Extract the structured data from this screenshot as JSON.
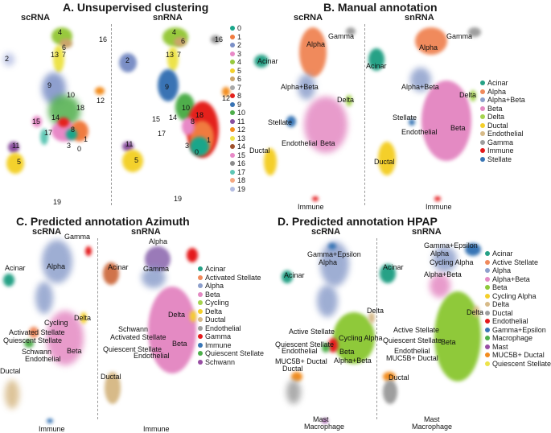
{
  "panels": {
    "A": {
      "title": "A.  Unsupervised clustering",
      "sub_left": "scRNA",
      "sub_right": "snRNA",
      "left_labels": [
        "4",
        "6",
        "16",
        "2",
        "13",
        "7",
        "9",
        "10",
        "18",
        "12",
        "15",
        "14",
        "8",
        "1",
        "17",
        "3",
        "0",
        "11",
        "5",
        "19"
      ],
      "right_labels": [
        "4",
        "6",
        "16",
        "2",
        "13",
        "7",
        "9",
        "10",
        "18",
        "12",
        "15",
        "14",
        "8",
        "1",
        "17",
        "3",
        "0",
        "11",
        "5",
        "19"
      ],
      "legend": [
        {
          "label": "0",
          "color": "#19a68a"
        },
        {
          "label": "1",
          "color": "#f07b3f"
        },
        {
          "label": "2",
          "color": "#7b8fc6"
        },
        {
          "label": "3",
          "color": "#e889c7"
        },
        {
          "label": "4",
          "color": "#97c93d"
        },
        {
          "label": "5",
          "color": "#f3d12c"
        },
        {
          "label": "6",
          "color": "#caa56b"
        },
        {
          "label": "7",
          "color": "#a8a8a8"
        },
        {
          "label": "8",
          "color": "#e4211c"
        },
        {
          "label": "9",
          "color": "#3973b4"
        },
        {
          "label": "10",
          "color": "#4fae4b"
        },
        {
          "label": "11",
          "color": "#8a4f9e"
        },
        {
          "label": "12",
          "color": "#f28c1d"
        },
        {
          "label": "13",
          "color": "#ede34a"
        },
        {
          "label": "14",
          "color": "#a0522d"
        },
        {
          "label": "15",
          "color": "#e889c7"
        },
        {
          "label": "16",
          "color": "#8c8c8c"
        },
        {
          "label": "17",
          "color": "#5fc7b5"
        },
        {
          "label": "18",
          "color": "#f5a882"
        },
        {
          "label": "19",
          "color": "#b4bde2"
        }
      ]
    },
    "B": {
      "title": "B. Manual annotation",
      "sub_left": "scRNA",
      "sub_right": "snRNA",
      "left_labels": [
        "Gamma",
        "Alpha",
        "Acinar",
        "Alpha+Beta",
        "Delta",
        "Stellate",
        "Endothelial",
        "Beta",
        "Ductal",
        "Immune"
      ],
      "right_labels": [
        "Gamma",
        "Alpha",
        "Acinar",
        "Alpha+Beta",
        "Delta",
        "Stellate",
        "Endothelial",
        "Beta",
        "Ductal",
        "Immune"
      ],
      "legend": [
        {
          "label": "Acinar",
          "color": "#26a186"
        },
        {
          "label": "Alpha",
          "color": "#f08a5c"
        },
        {
          "label": "Alpha+Beta",
          "color": "#8ea0cc"
        },
        {
          "label": "Beta",
          "color": "#e48ac3"
        },
        {
          "label": "Delta",
          "color": "#a5d34f"
        },
        {
          "label": "Ductal",
          "color": "#f4cf2a"
        },
        {
          "label": "Endothelial",
          "color": "#d7ba88"
        },
        {
          "label": "Gamma",
          "color": "#9e9e9e"
        },
        {
          "label": "Immune",
          "color": "#e41a1c"
        },
        {
          "label": "Stellate",
          "color": "#3875b5"
        }
      ]
    },
    "C": {
      "title": "C. Predicted annotation Azimuth",
      "sub_left": "scRNA",
      "sub_right": "snRNA",
      "left_labels": [
        "Gamma",
        "Acinar",
        "Alpha",
        "Cycling",
        "Delta",
        "Activated Stellate",
        "Quiescent Stellate",
        "Beta",
        "Schwann",
        "Endothelial",
        "Ductal",
        "Immune"
      ],
      "right_labels": [
        "Alpha",
        "Acinar",
        "Gamma",
        "Delta",
        "Schwann",
        "Activated Stellate",
        "Beta",
        "Quiescent Stellate",
        "Endothelial",
        "Ductal",
        "Immune"
      ],
      "legend": [
        {
          "label": "Acinar",
          "color": "#26a186"
        },
        {
          "label": "Activated Stellate",
          "color": "#f08a5c"
        },
        {
          "label": "Alpha",
          "color": "#8ea0cc"
        },
        {
          "label": "Beta",
          "color": "#e48ac3"
        },
        {
          "label": "Cycling",
          "color": "#a5d34f"
        },
        {
          "label": "Delta",
          "color": "#f4cf2a"
        },
        {
          "label": "Ductal",
          "color": "#d7ba88"
        },
        {
          "label": "Endothelial",
          "color": "#9e9e9e"
        },
        {
          "label": "Gamma",
          "color": "#e41a1c"
        },
        {
          "label": "Immune",
          "color": "#3875b5"
        },
        {
          "label": "Quiescent Stellate",
          "color": "#4daf4a"
        },
        {
          "label": "Schwann",
          "color": "#984ea3"
        }
      ]
    },
    "D": {
      "title": "D. Predicted annotation HPAP",
      "sub_left": "scRNA",
      "sub_right": "snRNA",
      "left_labels": [
        "Gamma+Epsilon",
        "Alpha",
        "Acinar",
        "Delta",
        "Active Stellate",
        "Cycling Alpha",
        "Quiescent Stellate",
        "Endothelial",
        "Beta",
        "MUC5B+ Ductal",
        "Alpha+Beta",
        "Ductal",
        "Mast",
        "Macrophage"
      ],
      "right_labels": [
        "Gamma+Epsilon",
        "Alpha",
        "Cycling Alpha",
        "Acinar",
        "Alpha+Beta",
        "Delta",
        "Active Stellate",
        "Quiescent Stellate",
        "Beta",
        "Endothelial",
        "MUC5B+ Ductal",
        "Ductal",
        "Mast",
        "Macrophage"
      ],
      "legend": [
        {
          "label": "Acinar",
          "color": "#26a186"
        },
        {
          "label": "Active Stellate",
          "color": "#f08a5c"
        },
        {
          "label": "Alpha",
          "color": "#8ea0cc"
        },
        {
          "label": "Alpha+Beta",
          "color": "#e48ac3"
        },
        {
          "label": "Beta",
          "color": "#8fc93a"
        },
        {
          "label": "Cycling Alpha",
          "color": "#f4cf2a"
        },
        {
          "label": "Delta",
          "color": "#d7ba88"
        },
        {
          "label": "Ductal",
          "color": "#9e9e9e"
        },
        {
          "label": "Endothelial",
          "color": "#e41a1c"
        },
        {
          "label": "Gamma+Epsilon",
          "color": "#3875b5"
        },
        {
          "label": "Macrophage",
          "color": "#4daf4a"
        },
        {
          "label": "Mast",
          "color": "#984ea3"
        },
        {
          "label": "MUC5B+ Ductal",
          "color": "#f28c1d"
        },
        {
          "label": "Quiescent Stellate",
          "color": "#ede34a"
        }
      ]
    }
  }
}
